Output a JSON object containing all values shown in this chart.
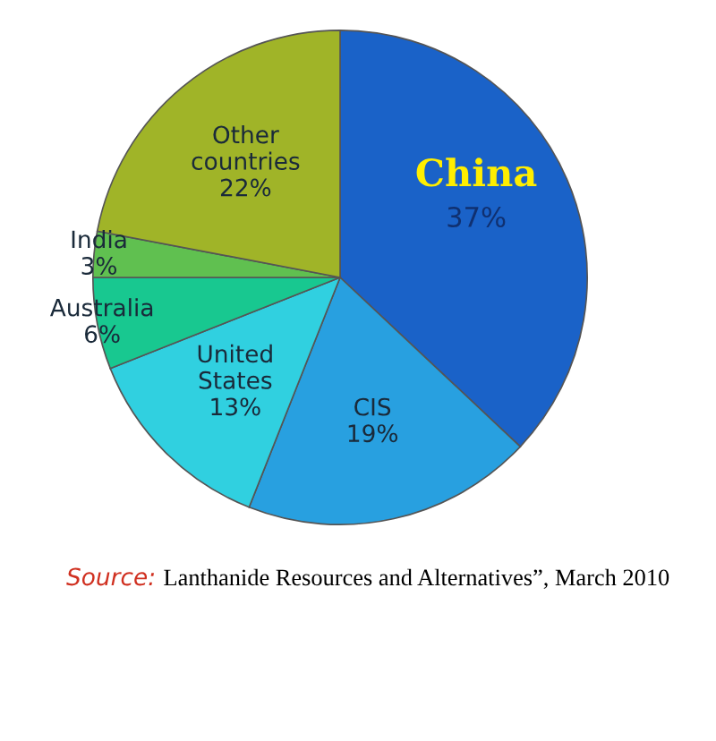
{
  "chart_data": {
    "type": "pie",
    "categories": [
      "China",
      "CIS",
      "United States",
      "Australia",
      "India",
      "Other countries"
    ],
    "values": [
      37,
      19,
      13,
      6,
      3,
      22
    ],
    "value_labels": [
      "37%",
      "19%",
      "13%",
      "6%",
      "3%",
      "22%"
    ],
    "colors": [
      "#1a62c8",
      "#28a0e0",
      "#30d0e0",
      "#18c890",
      "#60c050",
      "#a0b428"
    ],
    "annotations": [
      "Source:",
      "Lanthanide Resources and Alternatives”, March 2010"
    ]
  }
}
